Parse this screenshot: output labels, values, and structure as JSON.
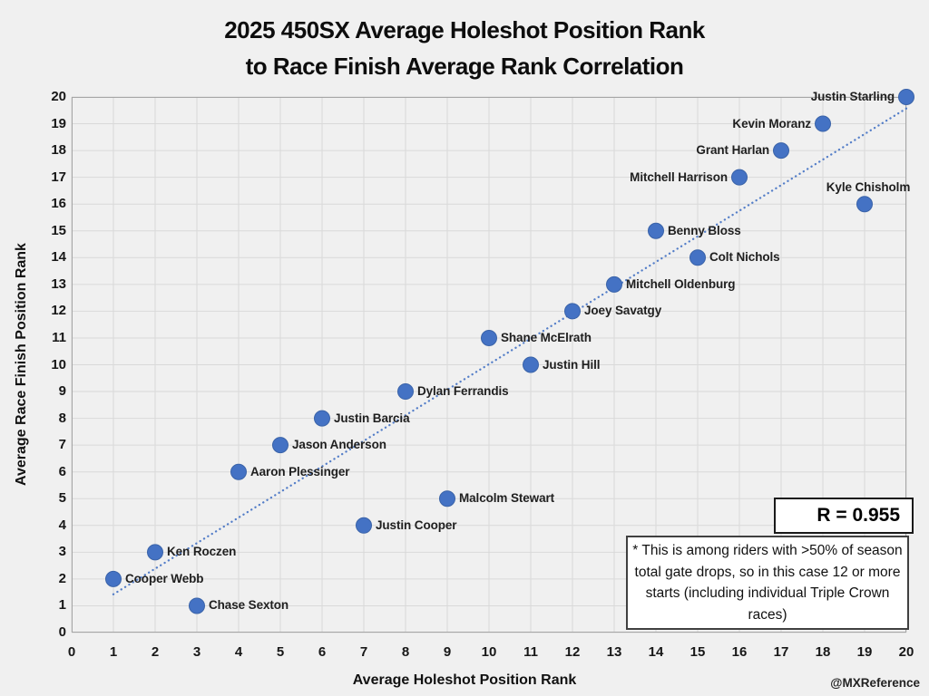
{
  "title": {
    "line1": "2025 450SX Average Holeshot Position Rank",
    "line2": "to Race Finish Average Rank Correlation"
  },
  "watermark": "@MXReference",
  "annotations": {
    "r_label": "R = 0.955",
    "note": "* This is among riders with >50% of season total gate drops, so in this case 12 or more starts (including individual Triple Crown races)"
  },
  "colors": {
    "background": "#f0f0f0",
    "grid": "#d9d9d9",
    "plot_border": "#a6a6a6",
    "marker": "#4472c4",
    "marker_edge": "#3a63a8",
    "trendline": "#4472c4",
    "text": "#1f1f1f"
  },
  "chart_data": {
    "type": "scatter",
    "title": "2025 450SX Average Holeshot Position Rank to Race Finish Average Rank Correlation",
    "xlabel": "Average Holeshot Position Rank",
    "ylabel": "Average Race Finish Position Rank",
    "xlim": [
      0,
      20
    ],
    "ylim": [
      0,
      20
    ],
    "xticks": [
      0,
      1,
      2,
      3,
      4,
      5,
      6,
      7,
      8,
      9,
      10,
      11,
      12,
      13,
      14,
      15,
      16,
      17,
      18,
      19,
      20
    ],
    "yticks": [
      0,
      1,
      2,
      3,
      4,
      5,
      6,
      7,
      8,
      9,
      10,
      11,
      12,
      13,
      14,
      15,
      16,
      17,
      18,
      19,
      20
    ],
    "grid": true,
    "r_value": 0.955,
    "trendline": {
      "style": "dotted",
      "x1": 1,
      "y1": 1.43,
      "x2": 20,
      "y2": 19.57
    },
    "points": [
      {
        "name": "Cooper Webb",
        "x": 1,
        "y": 2,
        "label_side": "right"
      },
      {
        "name": "Ken Roczen",
        "x": 2,
        "y": 3,
        "label_side": "right"
      },
      {
        "name": "Chase Sexton",
        "x": 3,
        "y": 1,
        "label_side": "right"
      },
      {
        "name": "Aaron Plessinger",
        "x": 4,
        "y": 6,
        "label_side": "right"
      },
      {
        "name": "Jason Anderson",
        "x": 5,
        "y": 7,
        "label_side": "right"
      },
      {
        "name": "Justin Barcia",
        "x": 6,
        "y": 8,
        "label_side": "right"
      },
      {
        "name": "Justin Cooper",
        "x": 7,
        "y": 4,
        "label_side": "right"
      },
      {
        "name": "Dylan Ferrandis",
        "x": 8,
        "y": 9,
        "label_side": "right"
      },
      {
        "name": "Malcolm Stewart",
        "x": 9,
        "y": 5,
        "label_side": "right"
      },
      {
        "name": "Shane McElrath",
        "x": 10,
        "y": 11,
        "label_side": "right"
      },
      {
        "name": "Justin Hill",
        "x": 11,
        "y": 10,
        "label_side": "right"
      },
      {
        "name": "Joey Savatgy",
        "x": 12,
        "y": 12,
        "label_side": "right"
      },
      {
        "name": "Mitchell Oldenburg",
        "x": 13,
        "y": 13,
        "label_side": "right"
      },
      {
        "name": "Benny Bloss",
        "x": 14,
        "y": 15,
        "label_side": "right"
      },
      {
        "name": "Colt Nichols",
        "x": 15,
        "y": 14,
        "label_side": "right"
      },
      {
        "name": "Mitchell Harrison",
        "x": 16,
        "y": 17,
        "label_side": "left"
      },
      {
        "name": "Grant Harlan",
        "x": 17,
        "y": 18,
        "label_side": "left"
      },
      {
        "name": "Kevin Moranz",
        "x": 18,
        "y": 19,
        "label_side": "left"
      },
      {
        "name": "Kyle Chisholm",
        "x": 19,
        "y": 16,
        "label_side": "above"
      },
      {
        "name": "Justin Starling",
        "x": 20,
        "y": 20,
        "label_side": "left"
      }
    ]
  }
}
